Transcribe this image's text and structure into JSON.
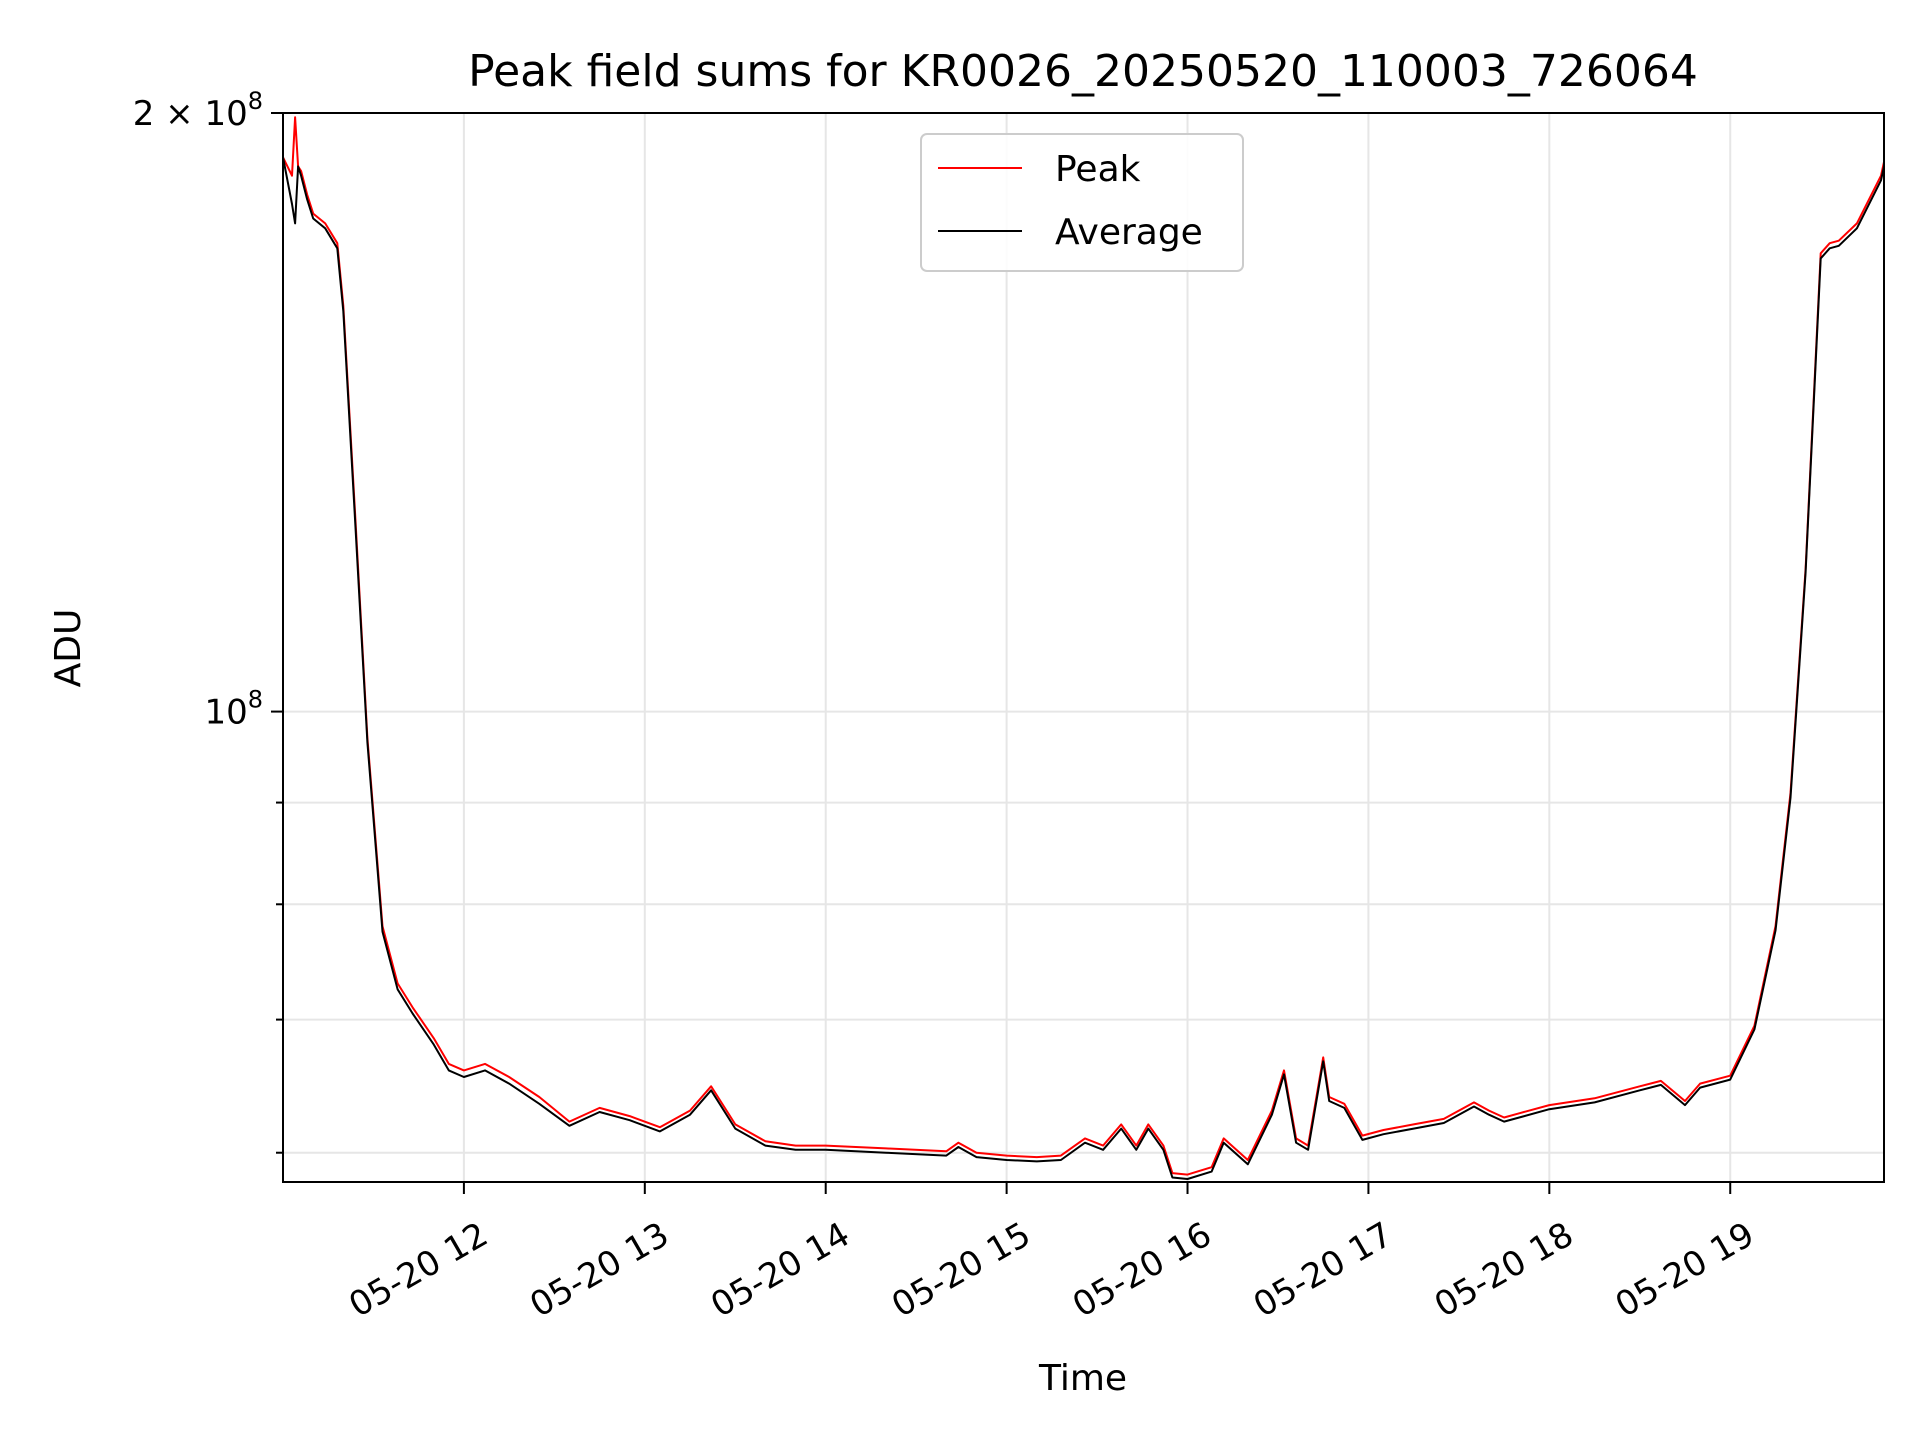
{
  "chart_data": {
    "type": "line",
    "title": "Peak field sums for KR0026_20250520_110003_726064",
    "xlabel": "Time",
    "ylabel": "ADU",
    "yscale": "log",
    "grid": true,
    "legend_position": "top-center",
    "xlim": [
      "05-20 11:00",
      "05-20 19:51"
    ],
    "ylim": [
      58000000,
      200000000
    ],
    "x_ticks": [
      "05-20 12",
      "05-20 13",
      "05-20 14",
      "05-20 15",
      "05-20 16",
      "05-20 17",
      "05-20 18",
      "05-20 19"
    ],
    "y_ticks": [
      {
        "value": 200000000,
        "mantissa": "2",
        "times": "×",
        "base": "10",
        "exp": "8"
      },
      {
        "value": 100000000,
        "mantissa": "",
        "times": "",
        "base": "10",
        "exp": "8"
      }
    ],
    "y_minor_ticks": [
      60000000,
      70000000,
      80000000,
      90000000
    ],
    "series": [
      {
        "name": "Peak",
        "color": "#ff0000",
        "x": [
          "05-20 11:00",
          "05-20 11:03",
          "05-20 11:04",
          "05-20 11:05",
          "05-20 11:06",
          "05-20 11:08",
          "05-20 11:10",
          "05-20 11:14",
          "05-20 11:18",
          "05-20 11:20",
          "05-20 11:24",
          "05-20 11:28",
          "05-20 11:33",
          "05-20 11:38",
          "05-20 11:43",
          "05-20 11:50",
          "05-20 11:55",
          "05-20 12:00",
          "05-20 12:07",
          "05-20 12:15",
          "05-20 12:25",
          "05-20 12:35",
          "05-20 12:45",
          "05-20 12:55",
          "05-20 13:05",
          "05-20 13:15",
          "05-20 13:22",
          "05-20 13:30",
          "05-20 13:40",
          "05-20 13:50",
          "05-20 14:00",
          "05-20 14:20",
          "05-20 14:40",
          "05-20 14:44",
          "05-20 14:50",
          "05-20 15:00",
          "05-20 15:10",
          "05-20 15:18",
          "05-20 15:26",
          "05-20 15:32",
          "05-20 15:38",
          "05-20 15:43",
          "05-20 15:47",
          "05-20 15:52",
          "05-20 15:55",
          "05-20 16:00",
          "05-20 16:08",
          "05-20 16:12",
          "05-20 16:20",
          "05-20 16:28",
          "05-20 16:32",
          "05-20 16:36",
          "05-20 16:40",
          "05-20 16:45",
          "05-20 16:47",
          "05-20 16:52",
          "05-20 16:58",
          "05-20 17:05",
          "05-20 17:15",
          "05-20 17:25",
          "05-20 17:35",
          "05-20 17:40",
          "05-20 17:45",
          "05-20 17:50",
          "05-20 18:00",
          "05-20 18:15",
          "05-20 18:30",
          "05-20 18:37",
          "05-20 18:45",
          "05-20 18:50",
          "05-20 19:00",
          "05-20 19:08",
          "05-20 19:15",
          "05-20 19:20",
          "05-20 19:25",
          "05-20 19:30",
          "05-20 19:33",
          "05-20 19:36",
          "05-20 19:42",
          "05-20 19:50",
          "05-20 19:51"
        ],
        "y": [
          190000000,
          186000000,
          199000000,
          188000000,
          187000000,
          182000000,
          178000000,
          176000000,
          172000000,
          160000000,
          125000000,
          97000000,
          78000000,
          73000000,
          71000000,
          68500000,
          66500000,
          66000000,
          66500000,
          65500000,
          64000000,
          62200000,
          63200000,
          62600000,
          61800000,
          63000000,
          64800000,
          62000000,
          60800000,
          60500000,
          60500000,
          60300000,
          60100000,
          60700000,
          60000000,
          59800000,
          59700000,
          59800000,
          61000000,
          60500000,
          62000000,
          60500000,
          62000000,
          60500000,
          58600000,
          58500000,
          59000000,
          61000000,
          59500000,
          63000000,
          66000000,
          61000000,
          60500000,
          67000000,
          64000000,
          63500000,
          61200000,
          61600000,
          62000000,
          62400000,
          63600000,
          63000000,
          62500000,
          62800000,
          63400000,
          63900000,
          64800000,
          65200000,
          63700000,
          65000000,
          65600000,
          69500000,
          78000000,
          91000000,
          118000000,
          170000000,
          172000000,
          172500000,
          176000000,
          186000000,
          189000000
        ]
      },
      {
        "name": "Average",
        "color": "#000000",
        "x": [
          "05-20 11:00",
          "05-20 11:03",
          "05-20 11:04",
          "05-20 11:05",
          "05-20 11:06",
          "05-20 11:08",
          "05-20 11:10",
          "05-20 11:14",
          "05-20 11:18",
          "05-20 11:20",
          "05-20 11:24",
          "05-20 11:28",
          "05-20 11:33",
          "05-20 11:38",
          "05-20 11:43",
          "05-20 11:50",
          "05-20 11:55",
          "05-20 12:00",
          "05-20 12:07",
          "05-20 12:15",
          "05-20 12:25",
          "05-20 12:35",
          "05-20 12:45",
          "05-20 12:55",
          "05-20 13:05",
          "05-20 13:15",
          "05-20 13:22",
          "05-20 13:30",
          "05-20 13:40",
          "05-20 13:50",
          "05-20 14:00",
          "05-20 14:20",
          "05-20 14:40",
          "05-20 14:44",
          "05-20 14:50",
          "05-20 15:00",
          "05-20 15:10",
          "05-20 15:18",
          "05-20 15:26",
          "05-20 15:32",
          "05-20 15:38",
          "05-20 15:43",
          "05-20 15:47",
          "05-20 15:52",
          "05-20 15:55",
          "05-20 16:00",
          "05-20 16:08",
          "05-20 16:12",
          "05-20 16:20",
          "05-20 16:28",
          "05-20 16:32",
          "05-20 16:36",
          "05-20 16:40",
          "05-20 16:45",
          "05-20 16:47",
          "05-20 16:52",
          "05-20 16:58",
          "05-20 17:05",
          "05-20 17:15",
          "05-20 17:25",
          "05-20 17:35",
          "05-20 17:40",
          "05-20 17:45",
          "05-20 17:50",
          "05-20 18:00",
          "05-20 18:15",
          "05-20 18:30",
          "05-20 18:37",
          "05-20 18:45",
          "05-20 18:50",
          "05-20 19:00",
          "05-20 19:08",
          "05-20 19:15",
          "05-20 19:20",
          "05-20 19:25",
          "05-20 19:30",
          "05-20 19:33",
          "05-20 19:36",
          "05-20 19:42",
          "05-20 19:50",
          "05-20 19:51"
        ],
        "y": [
          190000000,
          180000000,
          176000000,
          188000000,
          186000000,
          181000000,
          177000000,
          175000000,
          171000000,
          159000000,
          124000000,
          96500000,
          77500000,
          72500000,
          70500000,
          68000000,
          66000000,
          65500000,
          66000000,
          65000000,
          63500000,
          61900000,
          62900000,
          62300000,
          61500000,
          62700000,
          64500000,
          61700000,
          60500000,
          60200000,
          60200000,
          60000000,
          59800000,
          60400000,
          59700000,
          59500000,
          59400000,
          59500000,
          60700000,
          60200000,
          61700000,
          60200000,
          61700000,
          60200000,
          58300000,
          58200000,
          58700000,
          60700000,
          59200000,
          62700000,
          65700000,
          60700000,
          60200000,
          66700000,
          63700000,
          63200000,
          60900000,
          61300000,
          61700000,
          62100000,
          63300000,
          62700000,
          62200000,
          62500000,
          63100000,
          63600000,
          64500000,
          64900000,
          63400000,
          64700000,
          65300000,
          69200000,
          77600000,
          90500000,
          117500000,
          169000000,
          171000000,
          171500000,
          175000000,
          185000000,
          188000000
        ]
      }
    ]
  }
}
